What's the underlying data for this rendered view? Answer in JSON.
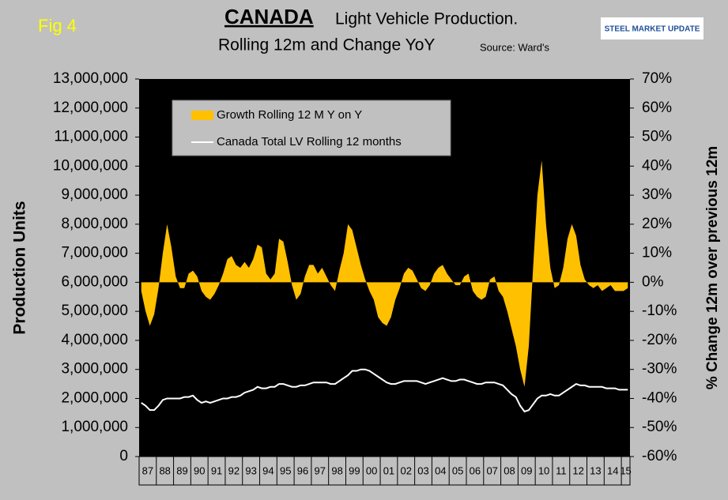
{
  "chart_data": {
    "type": "bar-area-line",
    "fig_label": "Fig 4",
    "title": "CANADA",
    "title_rest": "Light Vehicle Production.",
    "subtitle": "Rolling 12m and Change YoY",
    "source": "Source: Ward's",
    "logo": "STEEL MARKET UPDATE",
    "ylabel": "Production Units",
    "y2label": "% Change 12m over previous 12m",
    "legend": "upper left",
    "categories": [
      "87",
      null,
      null,
      null,
      "88",
      null,
      null,
      null,
      "89",
      null,
      null,
      null,
      "90",
      null,
      null,
      null,
      "91",
      null,
      null,
      null,
      "92",
      null,
      null,
      null,
      "93",
      null,
      null,
      null,
      "94",
      null,
      null,
      null,
      "95",
      null,
      null,
      null,
      "96",
      null,
      null,
      null,
      "97",
      null,
      null,
      null,
      "98",
      null,
      null,
      null,
      "99",
      null,
      null,
      null,
      "00",
      null,
      null,
      null,
      "01",
      null,
      null,
      null,
      "02",
      null,
      null,
      null,
      "03",
      null,
      null,
      null,
      "04",
      null,
      null,
      null,
      "05",
      null,
      null,
      null,
      "06",
      null,
      null,
      null,
      "07",
      null,
      null,
      null,
      "08",
      null,
      null,
      null,
      "09",
      null,
      null,
      null,
      "10",
      null,
      null,
      null,
      "11",
      null,
      null,
      null,
      "12",
      null,
      null,
      null,
      "13",
      null,
      null,
      null,
      "14",
      null,
      null,
      null,
      "15",
      null
    ],
    "series": [
      {
        "name": "Growth Rolling 12 M Y on Y",
        "color": "#ffc000",
        "axis": "y2",
        "kind": "area",
        "values": [
          -3,
          -10,
          -15,
          -11,
          -2,
          10,
          20,
          12,
          2,
          -2,
          -2,
          3,
          4,
          2,
          -3,
          -5,
          -6,
          -4,
          -1,
          3,
          8,
          9,
          6,
          5,
          7,
          5,
          8,
          13,
          12,
          3,
          1,
          3,
          15,
          14,
          7,
          -1,
          -6,
          -4,
          2,
          6,
          6,
          3,
          5,
          2,
          -1,
          -3,
          4,
          10,
          20,
          18,
          12,
          6,
          1,
          -3,
          -6,
          -12,
          -14,
          -15,
          -12,
          -6,
          -2,
          3,
          5,
          4,
          1,
          -2,
          -3,
          -1,
          3,
          5,
          6,
          3,
          1,
          -1,
          -1,
          2,
          3,
          -3,
          -5,
          -6,
          -5,
          1,
          2,
          -3,
          -5,
          -10,
          -16,
          -22,
          -30,
          -36,
          -22,
          5,
          30,
          42,
          20,
          5,
          -2,
          -1,
          5,
          15,
          20,
          16,
          6,
          1,
          -1,
          -2,
          -1,
          -3,
          -2,
          -1,
          -3,
          -3,
          -3,
          -2
        ]
      },
      {
        "name": "Canada Total LV Rolling 12 months",
        "color": "#ffffff",
        "axis": "y",
        "kind": "line",
        "values": [
          1850000,
          1750000,
          1600000,
          1600000,
          1750000,
          1950000,
          2000000,
          2000000,
          2000000,
          2000000,
          2050000,
          2050000,
          2100000,
          1950000,
          1850000,
          1900000,
          1850000,
          1900000,
          1950000,
          2000000,
          2000000,
          2050000,
          2050000,
          2100000,
          2200000,
          2250000,
          2300000,
          2400000,
          2350000,
          2350000,
          2400000,
          2400000,
          2500000,
          2500000,
          2450000,
          2400000,
          2400000,
          2450000,
          2450000,
          2500000,
          2550000,
          2550000,
          2550000,
          2550000,
          2500000,
          2500000,
          2600000,
          2700000,
          2800000,
          2950000,
          2950000,
          3000000,
          3000000,
          2950000,
          2850000,
          2750000,
          2650000,
          2550000,
          2500000,
          2500000,
          2550000,
          2600000,
          2600000,
          2600000,
          2600000,
          2550000,
          2500000,
          2550000,
          2600000,
          2650000,
          2700000,
          2650000,
          2600000,
          2600000,
          2650000,
          2650000,
          2600000,
          2550000,
          2500000,
          2500000,
          2550000,
          2550000,
          2550000,
          2500000,
          2450000,
          2300000,
          2150000,
          2050000,
          1750000,
          1550000,
          1600000,
          1800000,
          2000000,
          2100000,
          2100000,
          2150000,
          2100000,
          2100000,
          2200000,
          2300000,
          2400000,
          2500000,
          2450000,
          2450000,
          2400000,
          2400000,
          2400000,
          2400000,
          2350000,
          2350000,
          2350000,
          2300000,
          2300000,
          2300000
        ]
      }
    ],
    "ylim": [
      0,
      13000000
    ],
    "yticks": [
      0,
      {
        "value": 1000000,
        "label": "1,000,000"
      },
      {
        "value": 2000000,
        "label": "2,000,000"
      },
      {
        "value": 3000000,
        "label": "3,000,000"
      },
      {
        "value": 4000000,
        "label": "4,000,000"
      },
      {
        "value": 5000000,
        "label": "5,000,000"
      },
      {
        "value": 6000000,
        "label": "6,000,000"
      },
      {
        "value": 7000000,
        "label": "7,000,000"
      },
      {
        "value": 8000000,
        "label": "8,000,000"
      },
      {
        "value": 9000000,
        "label": "9,000,000"
      },
      {
        "value": 10000000,
        "label": "10,000,000"
      },
      {
        "value": 11000000,
        "label": "11,000,000"
      },
      {
        "value": 12000000,
        "label": "12,000,000"
      },
      {
        "value": 13000000,
        "label": "13,000,000"
      }
    ],
    "y2lim": [
      -60,
      70
    ],
    "y2ticks": [
      {
        "value": -60,
        "label": "-60%"
      },
      {
        "value": -50,
        "label": "-50%"
      },
      {
        "value": -40,
        "label": "-40%"
      },
      {
        "value": -30,
        "label": "-30%"
      },
      {
        "value": -20,
        "label": "-20%"
      },
      {
        "value": -10,
        "label": "-10%"
      },
      {
        "value": 0,
        "label": "0%"
      },
      {
        "value": 10,
        "label": "10%"
      },
      {
        "value": 20,
        "label": "20%"
      },
      {
        "value": 30,
        "label": "30%"
      },
      {
        "value": 40,
        "label": "40%"
      },
      {
        "value": 50,
        "label": "50%"
      },
      {
        "value": 60,
        "label": "60%"
      },
      {
        "value": 70,
        "label": "70%"
      }
    ]
  }
}
